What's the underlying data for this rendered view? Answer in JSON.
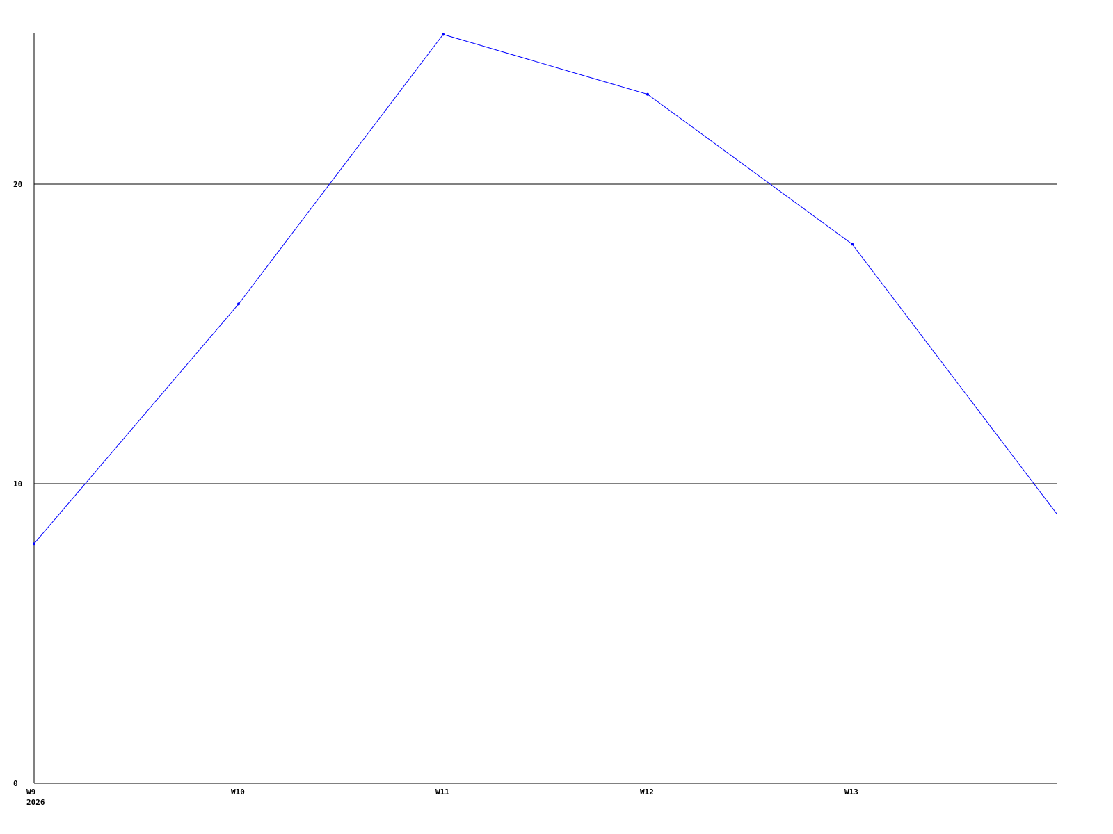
{
  "chart_data": {
    "type": "line",
    "title": "",
    "xlabel": "",
    "ylabel": "",
    "x": [
      9,
      10,
      11,
      12,
      13,
      14
    ],
    "x_tick_labels": [
      "W9",
      "W10",
      "W11",
      "W12",
      "W13"
    ],
    "x_year_label": "2026",
    "series": [
      {
        "values": [
          8,
          16,
          25,
          23,
          18,
          9
        ],
        "color": "#0000ff"
      }
    ],
    "ylim": [
      0,
      25
    ],
    "xlim": [
      9,
      14
    ],
    "y_ticks": [
      0,
      10,
      20
    ],
    "y_tick_labels": [
      "0",
      "10",
      "20"
    ],
    "grid": "horizontal at y ticks",
    "legend": "none"
  }
}
